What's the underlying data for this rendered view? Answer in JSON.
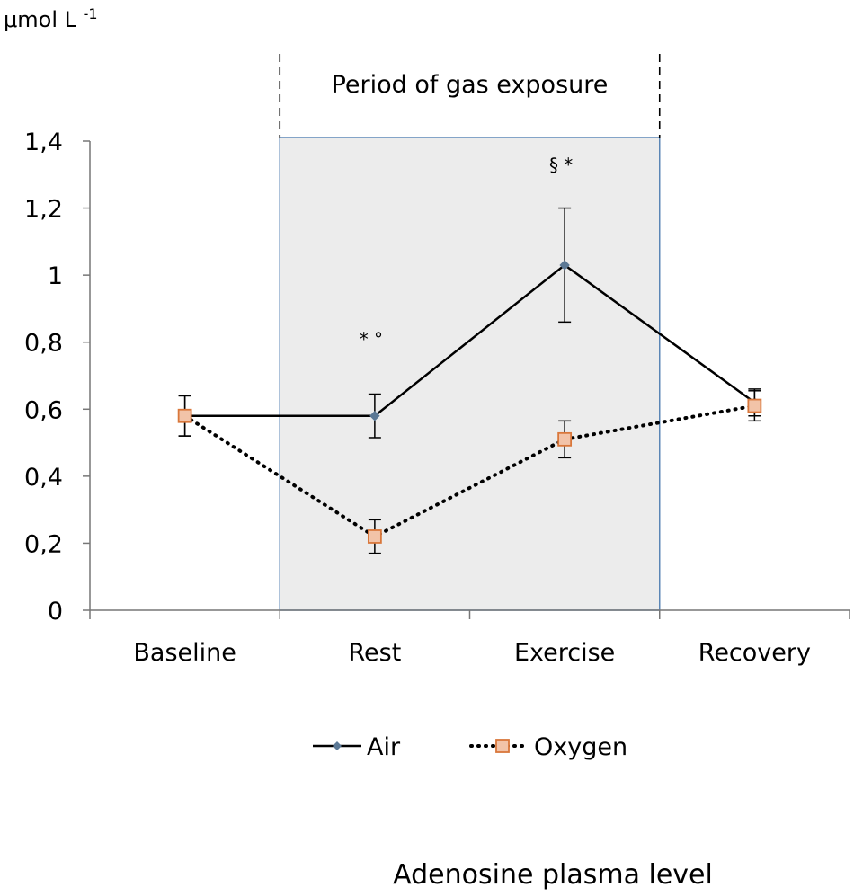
{
  "chart_data": {
    "type": "line",
    "title": "Adenosine plasma level",
    "ylabel": "μmol L",
    "ylabel_superscript": "-1",
    "categories": [
      "Baseline",
      "Rest",
      "Exercise",
      "Recovery"
    ],
    "ylim": [
      0,
      1.4
    ],
    "yticks": [
      0,
      0.2,
      0.4,
      0.6,
      0.8,
      1,
      1.2,
      1.4
    ],
    "ytick_labels": [
      "0",
      "0,2",
      "0,4",
      "0,6",
      "0,8",
      "1",
      "1,2",
      "1,4"
    ],
    "series": [
      {
        "name": "Air",
        "values": [
          0.58,
          0.58,
          1.03,
          0.62
        ],
        "errors": [
          0.06,
          0.065,
          0.17,
          0.04
        ],
        "color": "#000000",
        "marker_color": "#5b7895",
        "style": "solid",
        "marker": "diamond"
      },
      {
        "name": "Oxygen",
        "values": [
          0.58,
          0.22,
          0.51,
          0.61
        ],
        "errors": [
          0.06,
          0.05,
          0.055,
          0.045
        ],
        "color": "#000000",
        "marker_color": "#f2c3a8",
        "marker_edge": "#d9773b",
        "style": "dotted",
        "marker": "square"
      }
    ],
    "shaded_region": {
      "from_category": 1,
      "to_category": 2,
      "label": "Period of gas exposure",
      "fill": "#ececec",
      "border": "#5b86b6"
    },
    "annotations": [
      {
        "text": "* °",
        "category": 1,
        "y": 0.79
      },
      {
        "text": "§ *",
        "category": 2,
        "y": 1.31
      }
    ],
    "legend": {
      "position": "bottom"
    },
    "grid": false
  }
}
